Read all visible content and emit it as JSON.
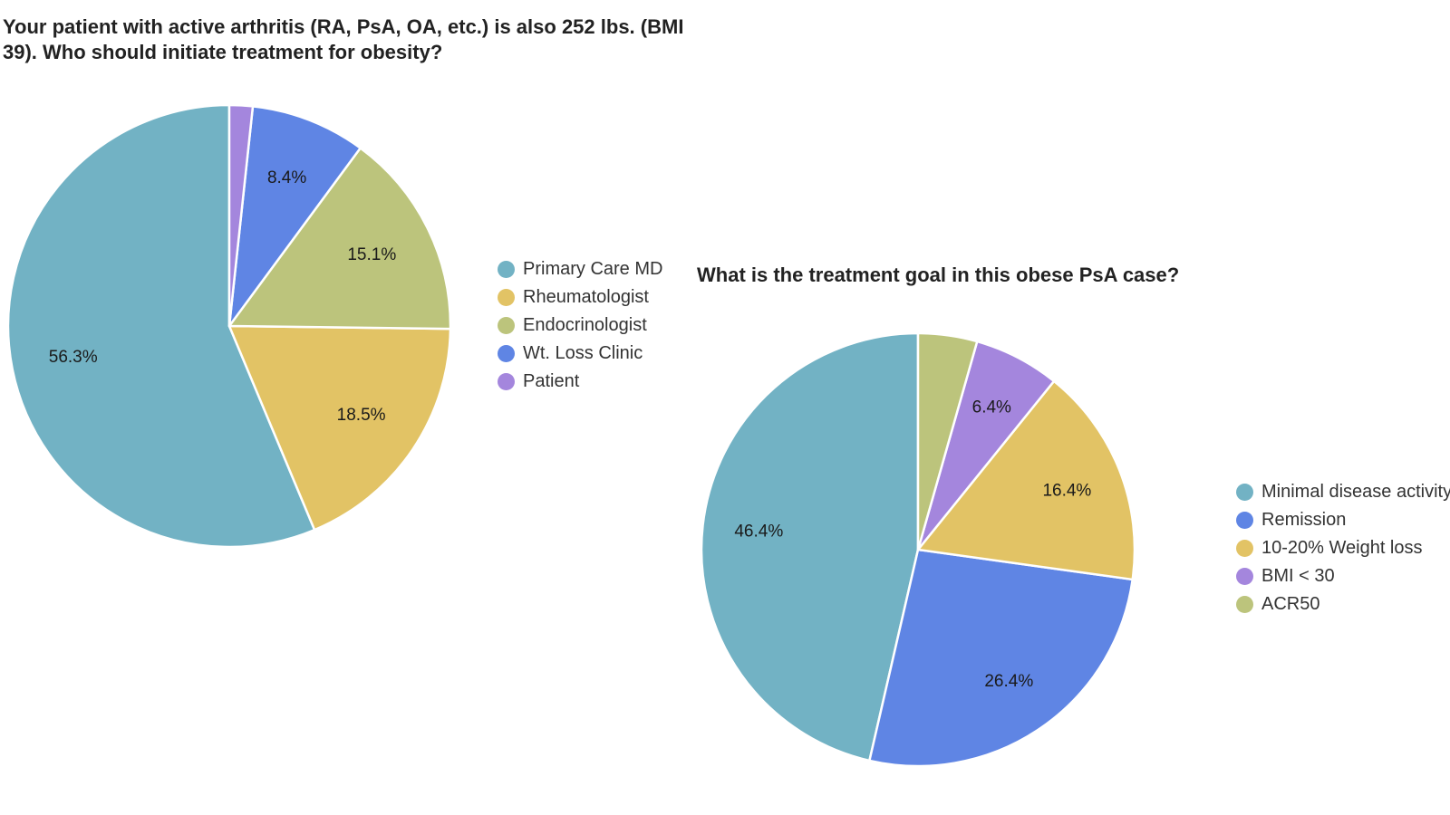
{
  "chart_data": [
    {
      "type": "pie",
      "title": "Your patient with active arthritis (RA, PsA, OA, etc.) is also 252 lbs. (BMI 39). Who should initiate treatment for obesity?",
      "title_lines": [
        "Your patient with active arthritis (RA, PsA, OA, etc.) is also 252 lbs. (BMI",
        "39). Who should initiate treatment for obesity?"
      ],
      "legend_position": "right",
      "slices": [
        {
          "label": "Primary Care MD",
          "value": 56.3,
          "display": "56.3%",
          "color": "#72b2c4"
        },
        {
          "label": "Rheumatologist",
          "value": 18.5,
          "display": "18.5%",
          "color": "#e2c365"
        },
        {
          "label": "Endocrinologist",
          "value": 15.1,
          "display": "15.1%",
          "color": "#bcc47c"
        },
        {
          "label": "Wt. Loss Clinic",
          "value": 8.4,
          "display": "8.4%",
          "color": "#5f85e4"
        },
        {
          "label": "Patient",
          "value": 1.7,
          "display": "",
          "color": "#a486dd"
        }
      ],
      "legend": [
        {
          "label": "Primary Care MD",
          "color": "#72b2c4"
        },
        {
          "label": "Rheumatologist",
          "color": "#e2c365"
        },
        {
          "label": "Endocrinologist",
          "color": "#bcc47c"
        },
        {
          "label": "Wt. Loss Clinic",
          "color": "#5f85e4"
        },
        {
          "label": "Patient",
          "color": "#a486dd"
        }
      ]
    },
    {
      "type": "pie",
      "title": "What is the treatment goal in this obese PsA case?",
      "legend_position": "right",
      "slices": [
        {
          "label": "Minimal disease activity",
          "value": 46.4,
          "display": "46.4%",
          "color": "#72b2c4"
        },
        {
          "label": "Remission",
          "value": 26.4,
          "display": "26.4%",
          "color": "#5f85e4"
        },
        {
          "label": "10-20% Weight loss",
          "value": 16.4,
          "display": "16.4%",
          "color": "#e2c365"
        },
        {
          "label": "BMI < 30",
          "value": 6.4,
          "display": "6.4%",
          "color": "#a486dd"
        },
        {
          "label": "ACR50",
          "value": 4.4,
          "display": "",
          "color": "#bcc47c"
        }
      ],
      "legend": [
        {
          "label": "Minimal disease activity",
          "color": "#72b2c4"
        },
        {
          "label": "Remission",
          "color": "#5f85e4"
        },
        {
          "label": "10-20% Weight loss",
          "color": "#e2c365"
        },
        {
          "label": "BMI < 30",
          "color": "#a486dd"
        },
        {
          "label": "ACR50",
          "color": "#bcc47c"
        }
      ]
    }
  ]
}
